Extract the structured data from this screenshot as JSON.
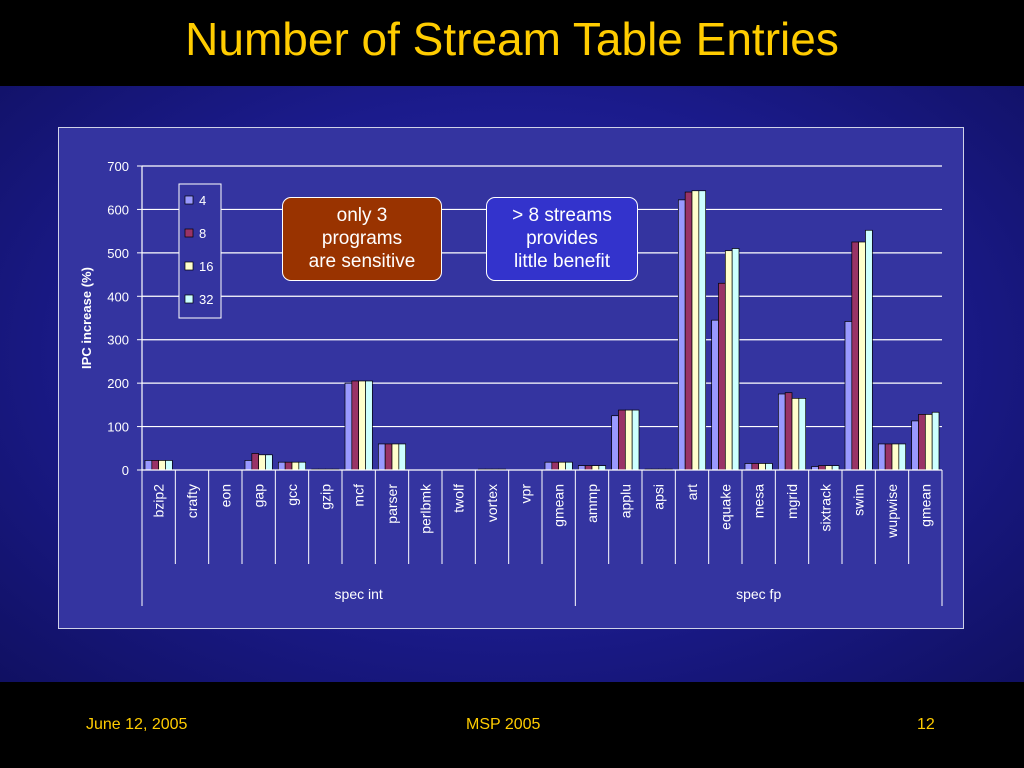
{
  "slide": {
    "title": "Number of Stream Table Entries",
    "footer_left": "June 12, 2005",
    "footer_center": "MSP 2005",
    "footer_right": "12"
  },
  "callouts": [
    {
      "text": "only 3 programs are sensitive",
      "lines": [
        "only 3",
        "programs",
        "are sensitive"
      ],
      "color": "#993300"
    },
    {
      "text": "> 8 streams provides little benefit",
      "lines": [
        "> 8 streams",
        "provides",
        "little benefit"
      ],
      "color": "#3333CC"
    }
  ],
  "chart_data": {
    "type": "bar",
    "title": "",
    "xlabel": "",
    "ylabel": "IPC increase (%)",
    "ylim": [
      0,
      700
    ],
    "yticks": [
      0,
      100,
      200,
      300,
      400,
      500,
      600,
      700
    ],
    "grid": true,
    "legend_position": "top-left",
    "categories": [
      "bzip2",
      "crafty",
      "eon",
      "gap",
      "gcc",
      "gzip",
      "mcf",
      "parser",
      "perlbmk",
      "twolf",
      "vortex",
      "vpr",
      "gmean",
      "ammp",
      "applu",
      "apsi",
      "art",
      "equake",
      "mesa",
      "mgrid",
      "sixtrack",
      "swim",
      "wupwise",
      "gmean"
    ],
    "groups": [
      {
        "label": "spec int",
        "start": 0,
        "end": 12
      },
      {
        "label": "spec fp",
        "start": 13,
        "end": 23
      }
    ],
    "series": [
      {
        "name": "4",
        "color": "#9999FF",
        "values": [
          22,
          0,
          0,
          22,
          18,
          2,
          200,
          60,
          0,
          0,
          2,
          0,
          18,
          10,
          125,
          2,
          622,
          345,
          15,
          175,
          8,
          342,
          60,
          113
        ]
      },
      {
        "name": "8",
        "color": "#993366",
        "values": [
          22,
          0,
          0,
          38,
          18,
          2,
          205,
          60,
          0,
          0,
          2,
          0,
          18,
          10,
          138,
          2,
          640,
          430,
          15,
          178,
          10,
          525,
          60,
          128
        ]
      },
      {
        "name": "16",
        "color": "#FFFFCC",
        "values": [
          22,
          0,
          0,
          35,
          18,
          2,
          205,
          60,
          0,
          0,
          2,
          0,
          18,
          10,
          138,
          2,
          643,
          505,
          15,
          165,
          10,
          525,
          60,
          128
        ]
      },
      {
        "name": "32",
        "color": "#CCFFFF",
        "values": [
          22,
          0,
          0,
          35,
          18,
          2,
          205,
          60,
          0,
          0,
          2,
          0,
          18,
          10,
          138,
          2,
          643,
          510,
          15,
          165,
          10,
          552,
          60,
          133
        ]
      }
    ]
  }
}
